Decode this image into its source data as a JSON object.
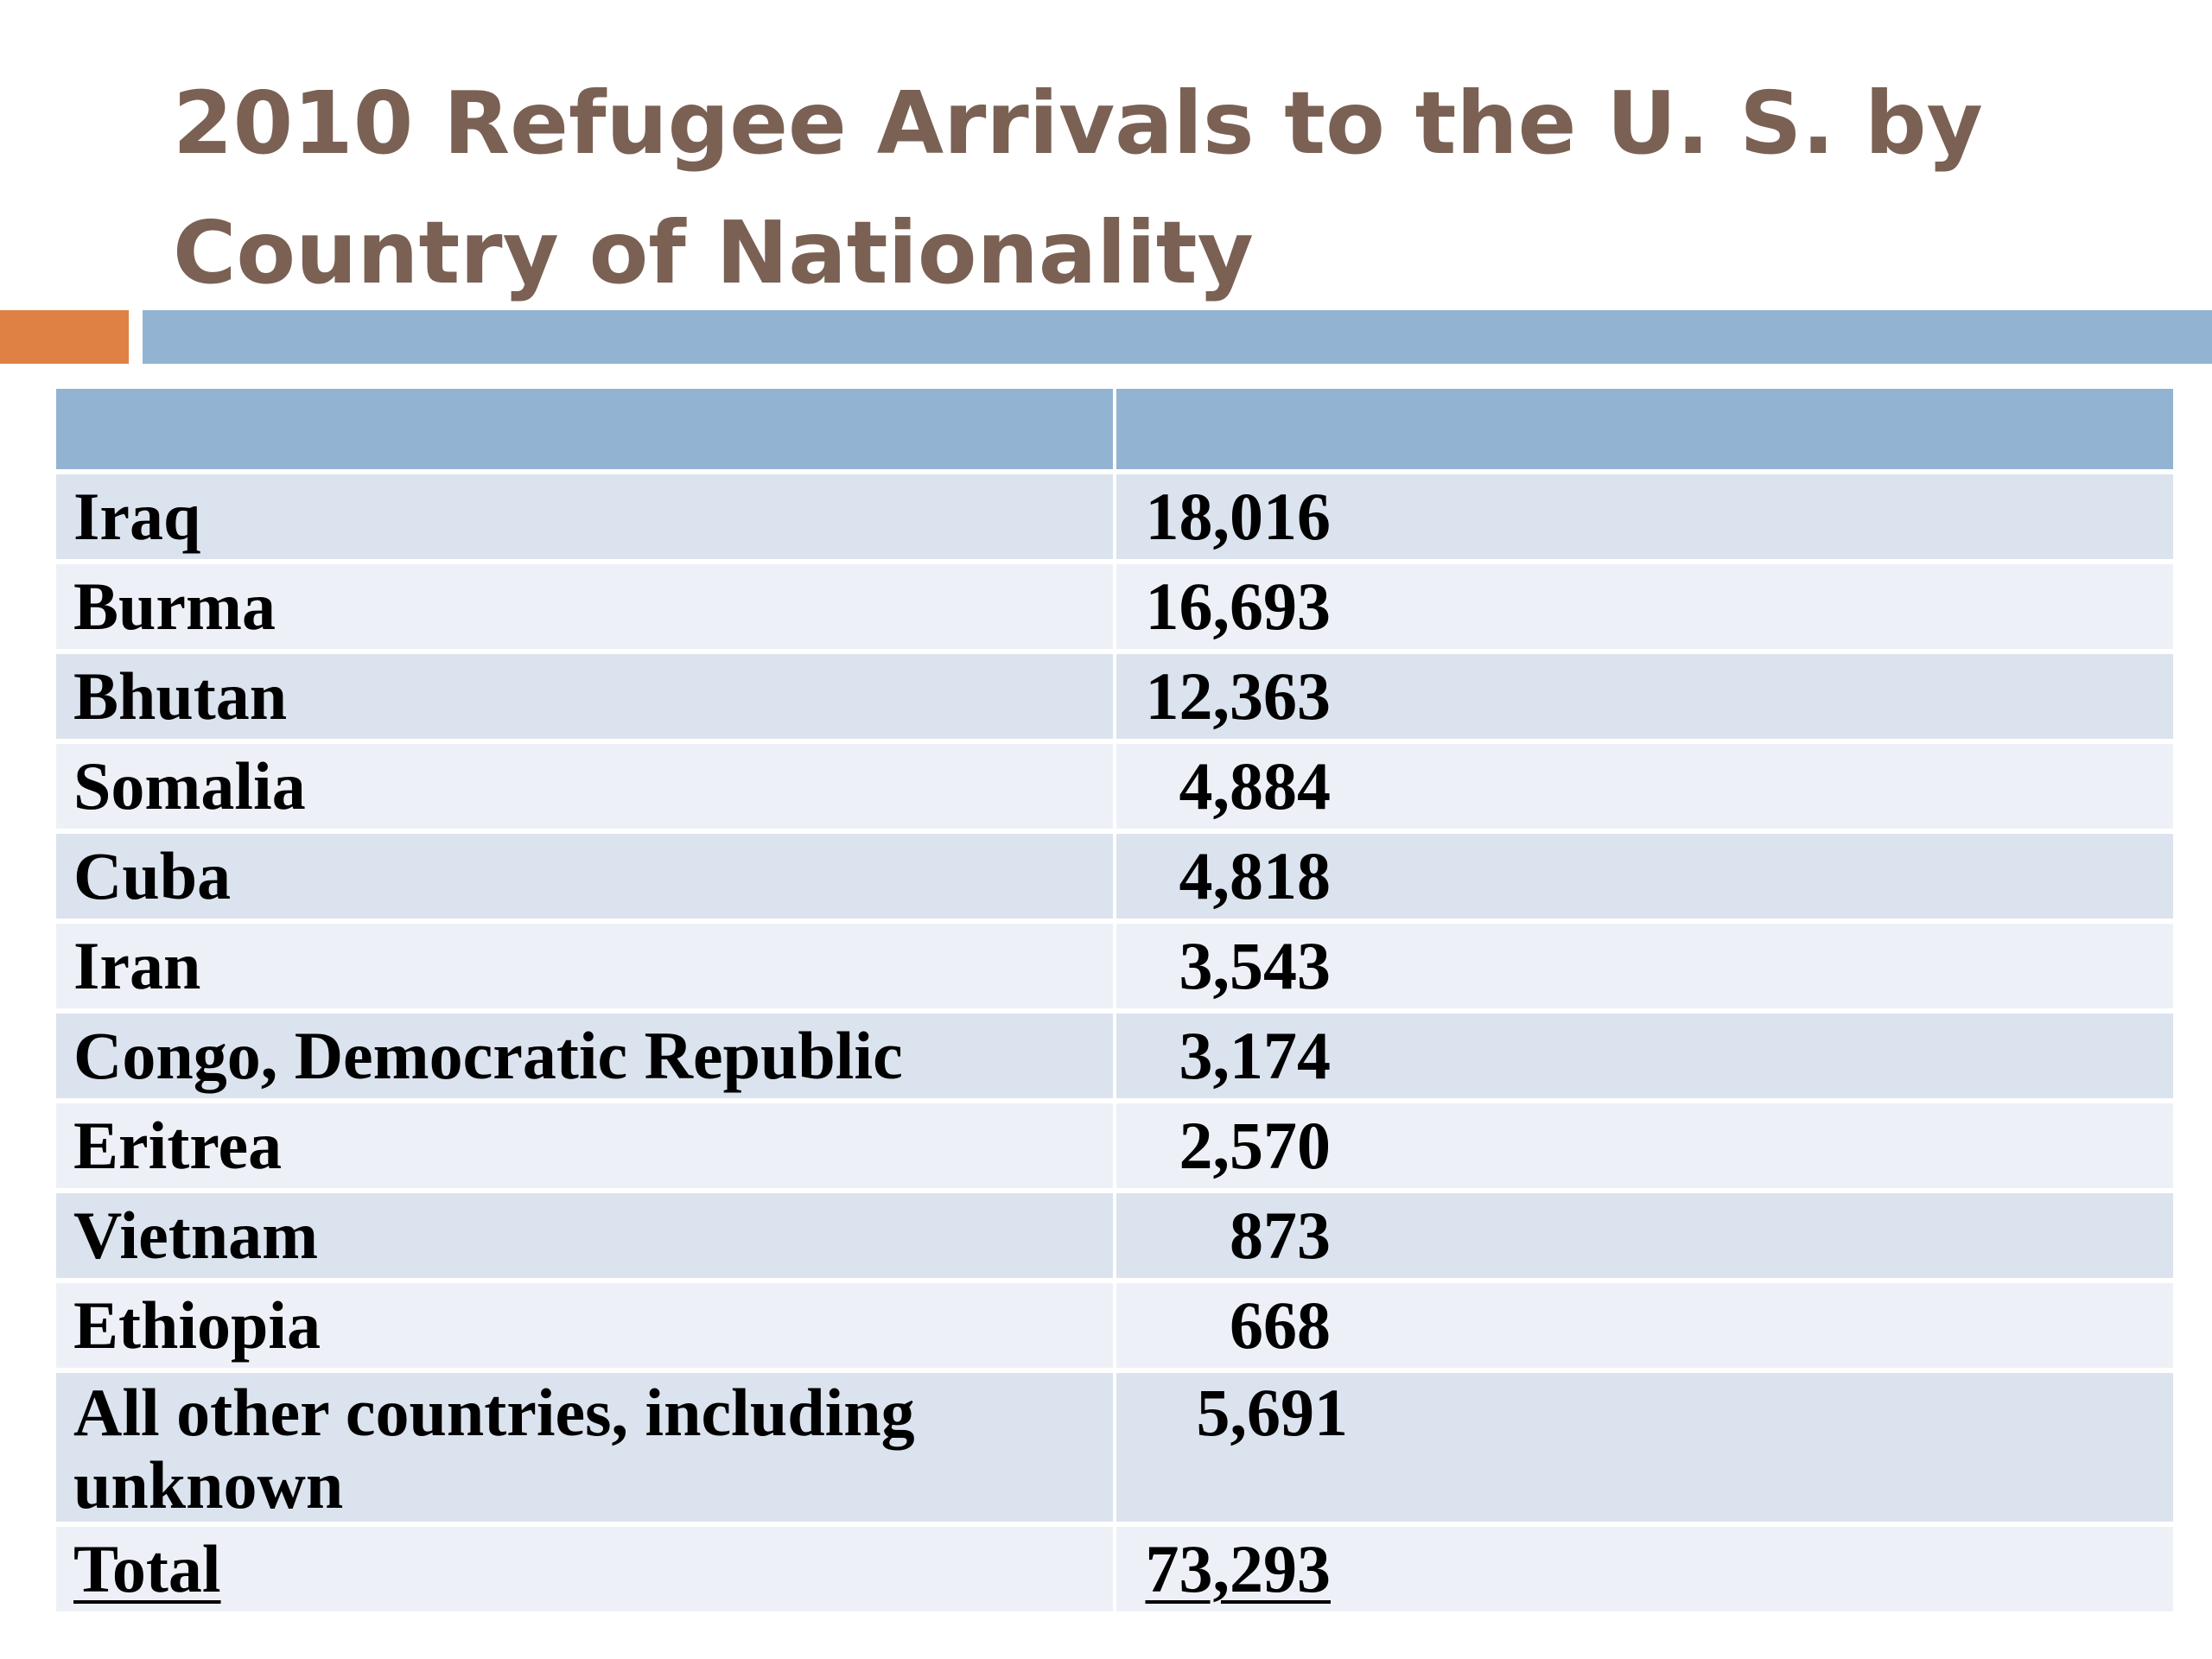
{
  "slide": {
    "title_line1": "2010 Refugee Arrivals to the U. S. by",
    "title_line2": "Country of Nationality"
  },
  "table": {
    "header": [
      "",
      ""
    ],
    "rows": [
      {
        "country": "Iraq",
        "arrivals": "18,016"
      },
      {
        "country": "Burma",
        "arrivals": "16,693"
      },
      {
        "country": "Bhutan",
        "arrivals": "12,363"
      },
      {
        "country": "Somalia",
        "arrivals": "4,884"
      },
      {
        "country": "Cuba",
        "arrivals": "4,818"
      },
      {
        "country": "Iran",
        "arrivals": "3,543"
      },
      {
        "country": "Congo, Democratic Republic",
        "arrivals": "3,174"
      },
      {
        "country": "Eritrea",
        "arrivals": "2,570"
      },
      {
        "country": "Vietnam",
        "arrivals": "873"
      },
      {
        "country": "Ethiopia",
        "arrivals": "668"
      },
      {
        "country": "All other countries, including unknown",
        "arrivals": "5,691"
      }
    ],
    "total": {
      "label": "Total",
      "value": "73,293"
    }
  },
  "colors": {
    "title": "#7a6154",
    "accent_orange": "#df8145",
    "accent_blue": "#93b3d2",
    "row_dark": "#dbe3ee",
    "row_light": "#edf1f7"
  }
}
